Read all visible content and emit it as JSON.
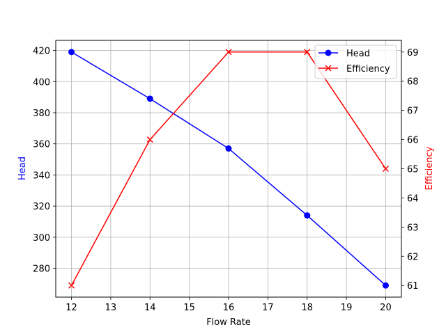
{
  "chart_data": {
    "type": "line",
    "title": "",
    "x": [
      12,
      14,
      16,
      18,
      20
    ],
    "xlabel": "Flow Rate",
    "xlim": [
      11.6,
      20.4
    ],
    "xticks": [
      12,
      13,
      14,
      15,
      16,
      17,
      18,
      19,
      20
    ],
    "grid": true,
    "legend_position": "upper right",
    "series": [
      {
        "name": "Head",
        "axis": "left",
        "color": "#0000ff",
        "marker": "circle",
        "values": [
          419,
          389,
          357,
          314,
          269
        ]
      },
      {
        "name": "Efficiency",
        "axis": "right",
        "color": "#ff0000",
        "marker": "x",
        "values": [
          61,
          66,
          69,
          69,
          65
        ]
      }
    ],
    "left_axis": {
      "label": "Head",
      "label_color": "#0000ff",
      "ylim": [
        261.5,
        426.5
      ],
      "ticks": [
        280,
        300,
        320,
        340,
        360,
        380,
        400,
        420
      ]
    },
    "right_axis": {
      "label": "Efficiency",
      "label_color": "#ff0000",
      "ylim": [
        60.6,
        69.4
      ],
      "ticks": [
        61,
        62,
        63,
        64,
        65,
        66,
        67,
        68,
        69
      ]
    }
  }
}
